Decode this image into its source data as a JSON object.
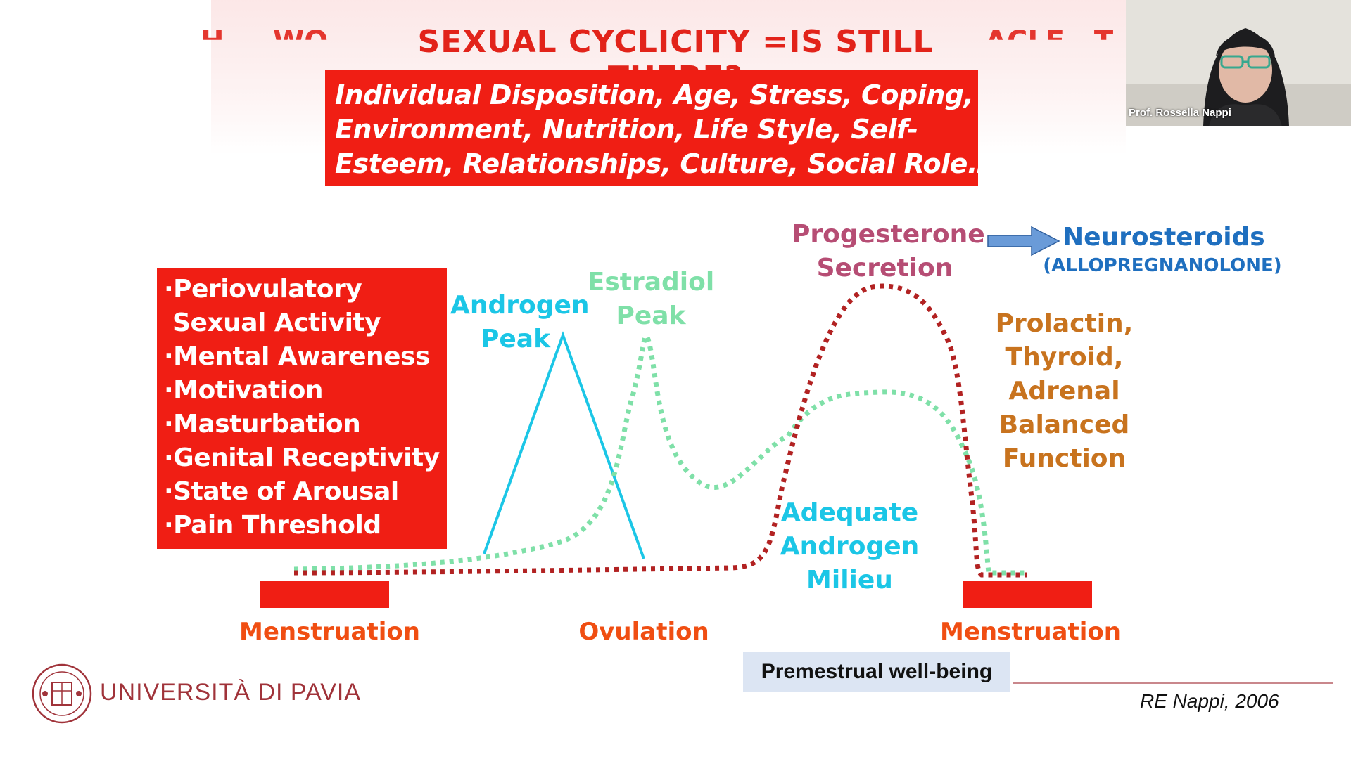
{
  "slide": {
    "title": "SEXUAL CYCLICITY =IS STILL THERE?",
    "factors_lines": [
      "Individual Disposition, Age, Stress, Coping,",
      "Environment, Nutrition, Life Style, Self-",
      "Esteem, Relationships, Culture, Social Role…"
    ],
    "effects_lines": [
      "·Periovulatory",
      " Sexual Activity",
      "·Mental Awareness",
      "·Motivation",
      "·Masturbation",
      "·Genital Receptivity",
      "·State of Arousal",
      "·Pain Threshold"
    ],
    "labels": {
      "androgen_peak": [
        "Androgen",
        "Peak"
      ],
      "estradiol_peak": [
        "Estradiol",
        "Peak"
      ],
      "progesterone": [
        "Progesterone",
        "Secretion"
      ],
      "neurosteroids": "Neurosteroids",
      "allopregnanolone": "(ALLOPREGNANOLONE)",
      "prolactin": [
        "Prolactin,",
        "Thyroid,",
        "Adrenal",
        "Balanced",
        "Function"
      ],
      "adequate_androgen": [
        "Adequate",
        "Androgen",
        "Milieu"
      ],
      "menstruation_left": "Menstruation",
      "ovulation": "Ovulation",
      "menstruation_right": "Menstruation"
    },
    "premenstrual": "Premestrual well-being",
    "reference": "RE Nappi, 2006",
    "university": "UNIVERSITÀ DI PAVIA"
  },
  "webcam": {
    "name": "Prof. Rossella Nappi"
  },
  "colors": {
    "red_box": "#f01e14",
    "androgen": "#1bc6e6",
    "estradiol": "#7fe0a8",
    "progesterone": "#b22222",
    "progesterone_label": "#b64d74",
    "neurosteroids": "#1f6fbf",
    "prolactin": "#c8731e",
    "axis_labels": "#f04e12"
  }
}
